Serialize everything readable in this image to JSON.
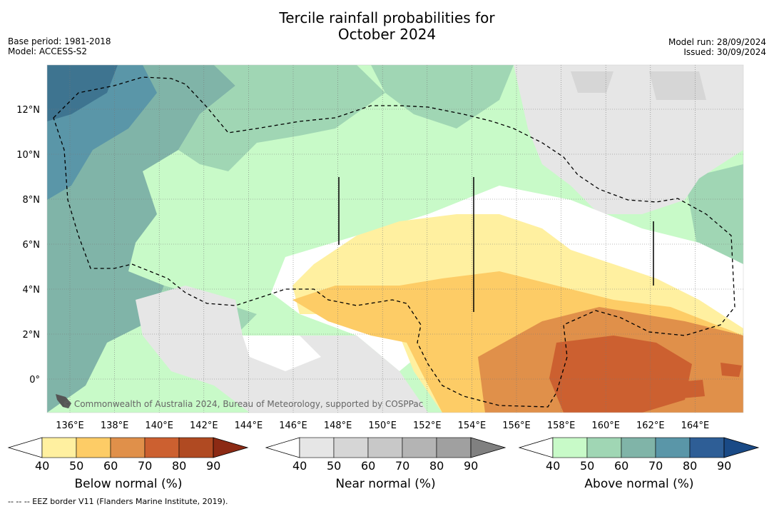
{
  "title_line1": "Tercile rainfall probabilities for",
  "title_line2": "October 2024",
  "meta_left": {
    "base_period": "Base period: 1981-2018",
    "model": "Model: ACCESS-S2"
  },
  "meta_right": {
    "model_run": "Model run: 28/09/2024",
    "issued": "Issued: 30/09/2024"
  },
  "map": {
    "lon_ticks": [
      "136°E",
      "138°E",
      "140°E",
      "142°E",
      "144°E",
      "146°E",
      "148°E",
      "150°E",
      "152°E",
      "154°E",
      "156°E",
      "158°E",
      "160°E",
      "162°E",
      "164°E"
    ],
    "lat_ticks": [
      "12°N",
      "10°N",
      "8°N",
      "6°N",
      "4°N",
      "2°N",
      "0°"
    ],
    "copyright": "© Commonwealth of Australia 2024, Bureau of Meteorology, supported by COSPPac"
  },
  "colorbars": [
    {
      "title": "Below normal (%)",
      "ticks": [
        "40",
        "50",
        "60",
        "70",
        "80",
        "90"
      ],
      "colors": [
        "#fff0a0",
        "#fdcc66",
        "#e0904a",
        "#cc6030",
        "#b04a22",
        "#8c2a14"
      ]
    },
    {
      "title": "Near normal (%)",
      "ticks": [
        "40",
        "50",
        "60",
        "70",
        "80",
        "90"
      ],
      "colors": [
        "#e6e6e6",
        "#d6d6d6",
        "#c8c8c8",
        "#b4b4b4",
        "#a0a0a0",
        "#808080"
      ]
    },
    {
      "title": "Above normal (%)",
      "ticks": [
        "40",
        "50",
        "60",
        "70",
        "80",
        "90"
      ],
      "colors": [
        "#c8fac8",
        "#a0d6b4",
        "#80b4a8",
        "#5a96a8",
        "#2e5e96",
        "#1a4a86"
      ]
    }
  ],
  "footnote": "-- -- -- EEZ border V11 (Flanders Marine Institute, 2019).",
  "colors": {
    "below40": "#fff0a0",
    "below50": "#fdcc66",
    "below60": "#e0904a",
    "below70": "#cc6030",
    "near40": "#e6e6e6",
    "near50": "#d6d6d6",
    "above40": "#c8fac8",
    "above50": "#a0d6b4",
    "above60": "#80b4a8",
    "above70": "#5a96a8",
    "above80": "#3e7490"
  }
}
